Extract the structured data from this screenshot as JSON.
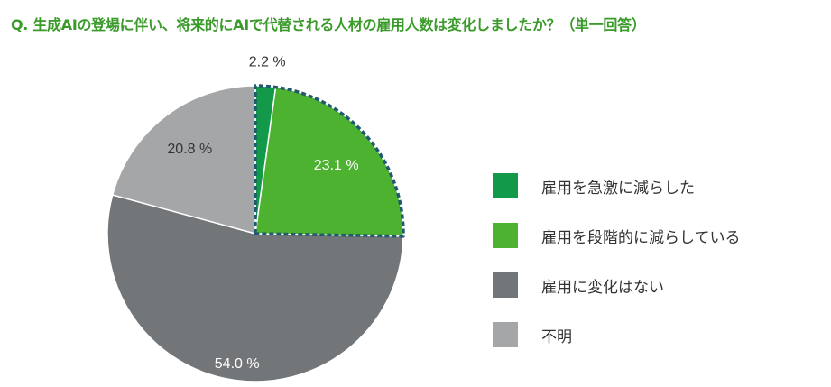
{
  "title": "Q. 生成AIの登場に伴い、将来的にAIで代替される人材の雇用人数は変化しましたか？（単一回答）",
  "chart_data": {
    "type": "pie",
    "slices": [
      {
        "label": "雇用を急激に減らした",
        "value": 2.2,
        "display": "2.2 %",
        "color": "#129a4a"
      },
      {
        "label": "雇用を段階的に減らしている",
        "value": 23.1,
        "display": "23.1 %",
        "color": "#4cb22f"
      },
      {
        "label": "雇用に変化はない",
        "value": 54.0,
        "display": "54.0 %",
        "color": "#727679"
      },
      {
        "label": "不明",
        "value": 20.8,
        "display": "20.8 %",
        "color": "#a5a6a8"
      }
    ],
    "highlight": {
      "slices": [
        0,
        1
      ],
      "style": "dashed-outline",
      "color": "#1f5a6e"
    },
    "legend_position": "right"
  }
}
